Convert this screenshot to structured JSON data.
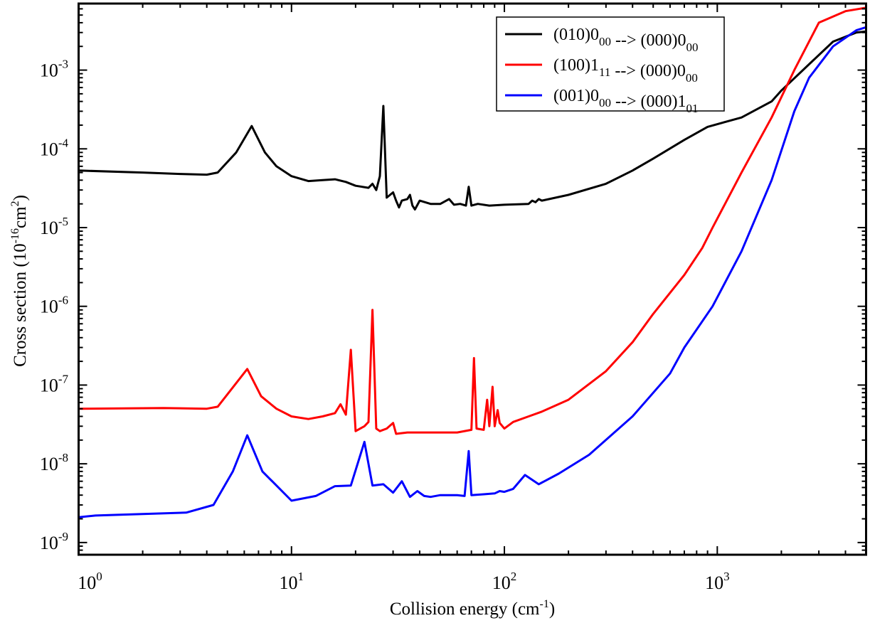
{
  "chart_data": {
    "type": "line",
    "xscale": "log",
    "yscale": "log",
    "xlim": [
      1,
      5000
    ],
    "ylim": [
      7e-10,
      0.007
    ],
    "xlabel": {
      "main": "Collision energy (cm",
      "sup": "-1",
      "tail": ")"
    },
    "ylabel": {
      "main": "Cross section (10",
      "sup1": "-16",
      "mid": "cm",
      "sup2": "2",
      "tail": ")"
    },
    "xticks": [
      {
        "value": 1,
        "base": "10",
        "exp": "0"
      },
      {
        "value": 10,
        "base": "10",
        "exp": "1"
      },
      {
        "value": 100,
        "base": "10",
        "exp": "2"
      },
      {
        "value": 1000,
        "base": "10",
        "exp": "3"
      }
    ],
    "yticks": [
      {
        "value": 1e-09,
        "base": "10",
        "exp": "-9"
      },
      {
        "value": 1e-08,
        "base": "10",
        "exp": "-8"
      },
      {
        "value": 1e-07,
        "base": "10",
        "exp": "-7"
      },
      {
        "value": 1e-06,
        "base": "10",
        "exp": "-6"
      },
      {
        "value": 1e-05,
        "base": "10",
        "exp": "-5"
      },
      {
        "value": 0.0001,
        "base": "10",
        "exp": "-4"
      },
      {
        "value": 0.001,
        "base": "10",
        "exp": "-3"
      }
    ],
    "legend_position": "top-right",
    "series": [
      {
        "name": "(010)0_00 --> (000)0_00",
        "label_parts": [
          [
            "(010)0",
            "",
            "00"
          ],
          [
            " --> (000)0",
            "",
            "00"
          ]
        ],
        "color": "#000000",
        "points": [
          [
            1,
            5.3e-05
          ],
          [
            2,
            5e-05
          ],
          [
            3,
            4.8e-05
          ],
          [
            4,
            4.7e-05
          ],
          [
            4.5,
            5e-05
          ],
          [
            5.5,
            9e-05
          ],
          [
            6.5,
            0.000195
          ],
          [
            7.5,
            9e-05
          ],
          [
            8.5,
            6e-05
          ],
          [
            10,
            4.5e-05
          ],
          [
            12,
            3.9e-05
          ],
          [
            14,
            4e-05
          ],
          [
            16,
            4.1e-05
          ],
          [
            18,
            3.8e-05
          ],
          [
            20,
            3.4e-05
          ],
          [
            23,
            3.2e-05
          ],
          [
            24,
            3.6e-05
          ],
          [
            25,
            3e-05
          ],
          [
            26,
            4.5e-05
          ],
          [
            27,
            0.00035
          ],
          [
            28,
            2.4e-05
          ],
          [
            30,
            2.8e-05
          ],
          [
            31,
            2.2e-05
          ],
          [
            32,
            1.8e-05
          ],
          [
            33,
            2.2e-05
          ],
          [
            35,
            2.3e-05
          ],
          [
            36,
            2.6e-05
          ],
          [
            37,
            1.9e-05
          ],
          [
            38,
            1.7e-05
          ],
          [
            40,
            2.2e-05
          ],
          [
            45,
            2e-05
          ],
          [
            50,
            2e-05
          ],
          [
            55,
            2.3e-05
          ],
          [
            58,
            1.95e-05
          ],
          [
            62,
            2e-05
          ],
          [
            66,
            1.9e-05
          ],
          [
            68,
            3.3e-05
          ],
          [
            70,
            1.9e-05
          ],
          [
            75,
            2e-05
          ],
          [
            85,
            1.9e-05
          ],
          [
            100,
            1.95e-05
          ],
          [
            130,
            2e-05
          ],
          [
            135,
            2.2e-05
          ],
          [
            140,
            2.1e-05
          ],
          [
            145,
            2.3e-05
          ],
          [
            150,
            2.2e-05
          ],
          [
            200,
            2.6e-05
          ],
          [
            300,
            3.6e-05
          ],
          [
            400,
            5.3e-05
          ],
          [
            500,
            7.5e-05
          ],
          [
            700,
            0.00013
          ],
          [
            900,
            0.00019
          ],
          [
            1300,
            0.00025
          ],
          [
            1800,
            0.0004
          ],
          [
            2000,
            0.00055
          ],
          [
            2800,
            0.0013
          ],
          [
            3500,
            0.0023
          ],
          [
            4500,
            0.003
          ],
          [
            5000,
            0.0031
          ]
        ]
      },
      {
        "name": "(100)1_11 --> (000)0_00",
        "label_parts": [
          [
            "(100)1",
            "",
            "11"
          ],
          [
            " --> (000)0",
            "",
            "00"
          ]
        ],
        "color": "#ff0000",
        "points": [
          [
            1,
            5e-08
          ],
          [
            2.5,
            5.1e-08
          ],
          [
            4,
            5e-08
          ],
          [
            4.5,
            5.3e-08
          ],
          [
            6.2,
            1.6e-07
          ],
          [
            7.2,
            7.2e-08
          ],
          [
            8.5,
            5e-08
          ],
          [
            10,
            4e-08
          ],
          [
            12,
            3.7e-08
          ],
          [
            14,
            4e-08
          ],
          [
            16,
            4.4e-08
          ],
          [
            17,
            5.7e-08
          ],
          [
            18,
            4.2e-08
          ],
          [
            19,
            2.8e-07
          ],
          [
            20,
            2.6e-08
          ],
          [
            22,
            3e-08
          ],
          [
            23,
            3.4e-08
          ],
          [
            24,
            9e-07
          ],
          [
            25,
            2.8e-08
          ],
          [
            26,
            2.6e-08
          ],
          [
            28,
            2.8e-08
          ],
          [
            30,
            3.3e-08
          ],
          [
            31,
            2.4e-08
          ],
          [
            35,
            2.5e-08
          ],
          [
            45,
            2.5e-08
          ],
          [
            60,
            2.5e-08
          ],
          [
            70,
            2.7e-08
          ],
          [
            72,
            2.2e-07
          ],
          [
            74,
            2.8e-08
          ],
          [
            80,
            2.7e-08
          ],
          [
            83,
            6.5e-08
          ],
          [
            85,
            3e-08
          ],
          [
            88,
            9.5e-08
          ],
          [
            90,
            3e-08
          ],
          [
            93,
            4.8e-08
          ],
          [
            95,
            3.3e-08
          ],
          [
            100,
            2.8e-08
          ],
          [
            110,
            3.4e-08
          ],
          [
            130,
            4e-08
          ],
          [
            150,
            4.6e-08
          ],
          [
            200,
            6.5e-08
          ],
          [
            300,
            1.5e-07
          ],
          [
            400,
            3.5e-07
          ],
          [
            500,
            8e-07
          ],
          [
            700,
            2.5e-06
          ],
          [
            850,
            5.5e-06
          ],
          [
            950,
            1e-05
          ],
          [
            1300,
            5e-05
          ],
          [
            1800,
            0.00025
          ],
          [
            2300,
            0.001
          ],
          [
            3000,
            0.004
          ],
          [
            4000,
            0.0056
          ],
          [
            5000,
            0.0062
          ]
        ]
      },
      {
        "name": "(001)0_00 --> (000)1_01",
        "label_parts": [
          [
            "(001)0",
            "",
            "00"
          ],
          [
            " --> (000)1",
            "",
            "01"
          ]
        ],
        "color": "#0000ff",
        "points": [
          [
            1,
            2.1e-09
          ],
          [
            1.2,
            2.2e-09
          ],
          [
            2,
            2.3e-09
          ],
          [
            3.2,
            2.4e-09
          ],
          [
            4.3,
            3e-09
          ],
          [
            5.3,
            8e-09
          ],
          [
            6.2,
            2.3e-08
          ],
          [
            7.3,
            8e-09
          ],
          [
            10,
            3.4e-09
          ],
          [
            13,
            3.9e-09
          ],
          [
            16,
            5.2e-09
          ],
          [
            19,
            5.3e-09
          ],
          [
            22,
            1.9e-08
          ],
          [
            24,
            5.3e-09
          ],
          [
            27,
            5.5e-09
          ],
          [
            30,
            4.3e-09
          ],
          [
            33,
            6e-09
          ],
          [
            36,
            3.8e-09
          ],
          [
            39,
            4.5e-09
          ],
          [
            42,
            3.9e-09
          ],
          [
            45,
            3.8e-09
          ],
          [
            50,
            4e-09
          ],
          [
            55,
            4e-09
          ],
          [
            60,
            4e-09
          ],
          [
            65,
            3.9e-09
          ],
          [
            68,
            1.45e-08
          ],
          [
            70,
            4e-09
          ],
          [
            80,
            4.1e-09
          ],
          [
            90,
            4.2e-09
          ],
          [
            95,
            4.5e-09
          ],
          [
            100,
            4.4e-09
          ],
          [
            110,
            4.8e-09
          ],
          [
            125,
            7.2e-09
          ],
          [
            145,
            5.5e-09
          ],
          [
            180,
            7.5e-09
          ],
          [
            250,
            1.3e-08
          ],
          [
            400,
            4e-08
          ],
          [
            600,
            1.4e-07
          ],
          [
            700,
            3e-07
          ],
          [
            950,
            1e-06
          ],
          [
            1300,
            5e-06
          ],
          [
            1800,
            4e-05
          ],
          [
            2300,
            0.0003
          ],
          [
            2700,
            0.0008
          ],
          [
            3500,
            0.002
          ],
          [
            4500,
            0.0032
          ],
          [
            5000,
            0.0035
          ]
        ]
      }
    ]
  }
}
